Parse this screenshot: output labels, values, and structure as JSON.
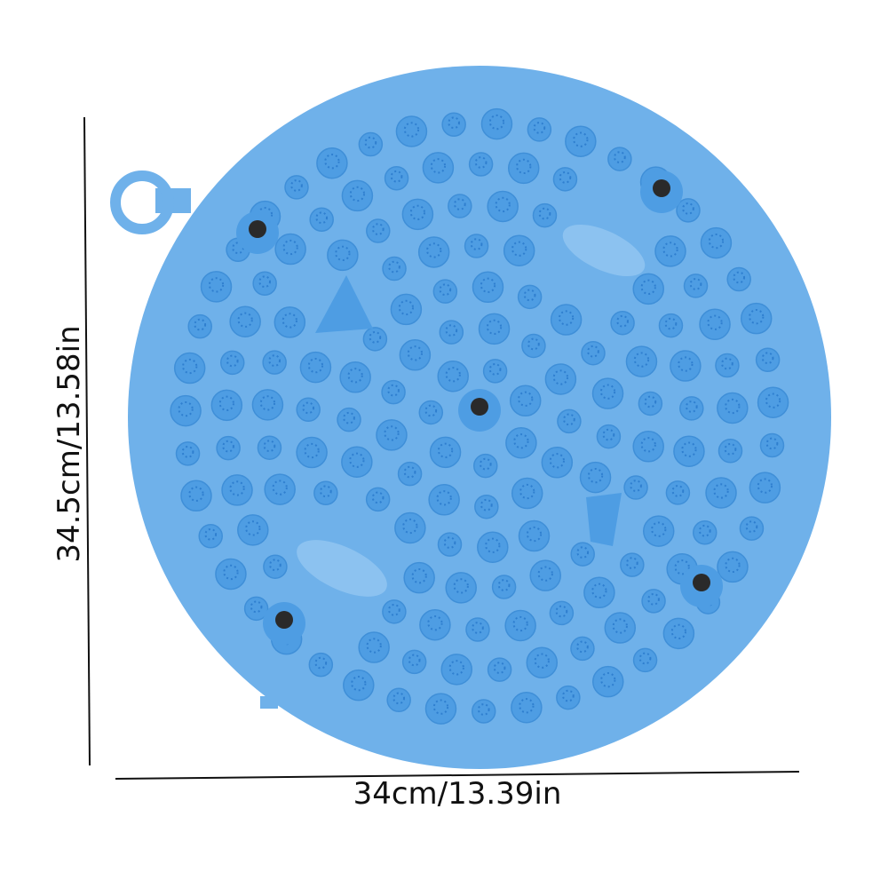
{
  "product": {
    "name": "",
    "colors": {
      "mat": "#6fb1ea",
      "bump": "#4e9de3",
      "bump_dot": "#2f7fcf",
      "magnet": "#2a2a2a",
      "line": "#111111"
    },
    "features": [
      "hanging-ring",
      "massage-bumps",
      "magnets",
      "oval-pads",
      "cone-nubs"
    ]
  },
  "dimensions": {
    "width_label": "34cm/13.39in",
    "height_label": "34.5cm/13.58in"
  }
}
